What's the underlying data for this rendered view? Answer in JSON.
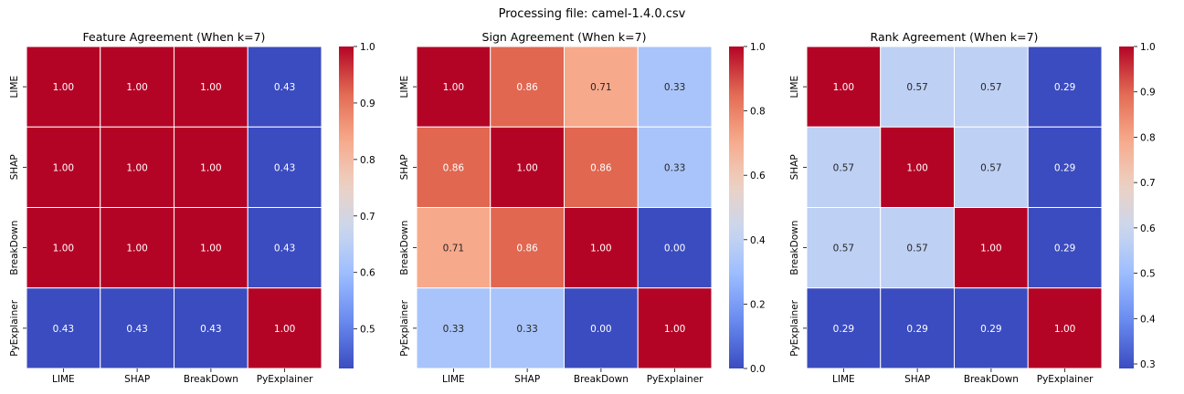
{
  "figure": {
    "suptitle": "Processing file: camel-1.4.0.csv"
  },
  "colors": {
    "colormap": "coolwarm",
    "stops": [
      "#3b4cc0",
      "#6788ee",
      "#9abbff",
      "#c9d7f0",
      "#edd1c2",
      "#f7a889",
      "#e26952",
      "#b40426"
    ],
    "cell_border": "#ffffff",
    "label_light": "#ffffff",
    "label_dark": "#262626"
  },
  "chart_data": [
    {
      "type": "heatmap",
      "title": "Feature Agreement (When k=7)",
      "rows": [
        "LIME",
        "SHAP",
        "BreakDown",
        "PyExplainer"
      ],
      "columns": [
        "LIME",
        "SHAP",
        "BreakDown",
        "PyExplainer"
      ],
      "values": [
        [
          1.0,
          1.0,
          1.0,
          0.43
        ],
        [
          1.0,
          1.0,
          1.0,
          0.43
        ],
        [
          1.0,
          1.0,
          1.0,
          0.43
        ],
        [
          0.43,
          0.43,
          0.43,
          1.0
        ]
      ],
      "vmin": 0.43,
      "vmax": 1.0,
      "colorbar_ticks": [
        0.5,
        0.6,
        0.7,
        0.8,
        0.9,
        1.0
      ],
      "colorbar_tick_labels": [
        "0.5",
        "0.6",
        "0.7",
        "0.8",
        "0.9",
        "1.0"
      ]
    },
    {
      "type": "heatmap",
      "title": "Sign Agreement (When k=7)",
      "rows": [
        "LIME",
        "SHAP",
        "BreakDown",
        "PyExplainer"
      ],
      "columns": [
        "LIME",
        "SHAP",
        "BreakDown",
        "PyExplainer"
      ],
      "values": [
        [
          1.0,
          0.86,
          0.71,
          0.33
        ],
        [
          0.86,
          1.0,
          0.86,
          0.33
        ],
        [
          0.71,
          0.86,
          1.0,
          0.0
        ],
        [
          0.33,
          0.33,
          0.0,
          1.0
        ]
      ],
      "vmin": 0.0,
      "vmax": 1.0,
      "colorbar_ticks": [
        0.0,
        0.2,
        0.4,
        0.6,
        0.8,
        1.0
      ],
      "colorbar_tick_labels": [
        "0.0",
        "0.2",
        "0.4",
        "0.6",
        "0.8",
        "1.0"
      ]
    },
    {
      "type": "heatmap",
      "title": "Rank Agreement (When k=7)",
      "rows": [
        "LIME",
        "SHAP",
        "BreakDown",
        "PyExplainer"
      ],
      "columns": [
        "LIME",
        "SHAP",
        "BreakDown",
        "PyExplainer"
      ],
      "values": [
        [
          1.0,
          0.57,
          0.57,
          0.29
        ],
        [
          0.57,
          1.0,
          0.57,
          0.29
        ],
        [
          0.57,
          0.57,
          1.0,
          0.29
        ],
        [
          0.29,
          0.29,
          0.29,
          1.0
        ]
      ],
      "vmin": 0.29,
      "vmax": 1.0,
      "colorbar_ticks": [
        0.3,
        0.4,
        0.5,
        0.6,
        0.7,
        0.8,
        0.9,
        1.0
      ],
      "colorbar_tick_labels": [
        "0.3",
        "0.4",
        "0.5",
        "0.6",
        "0.7",
        "0.8",
        "0.9",
        "1.0"
      ]
    }
  ]
}
